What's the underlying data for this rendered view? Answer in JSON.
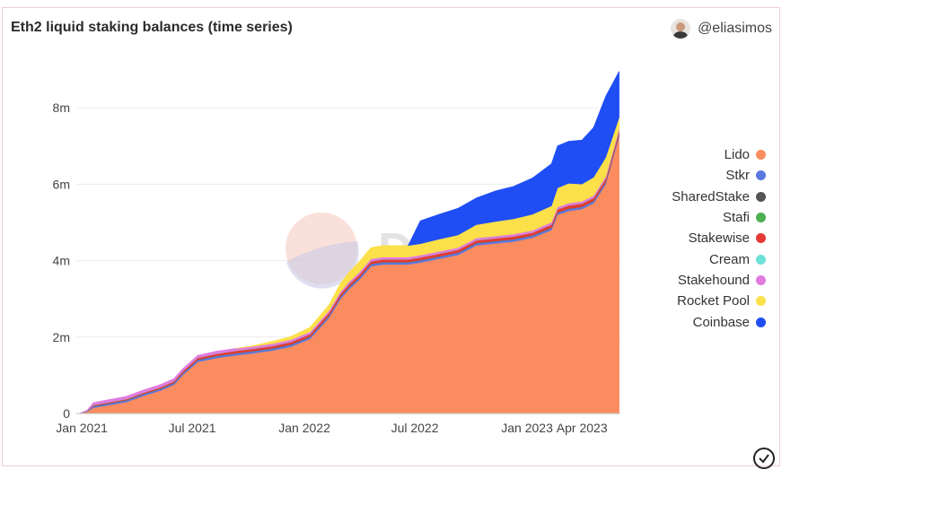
{
  "header": {
    "title": "Eth2 liquid staking balances (time series)",
    "author": "@eliasimos"
  },
  "watermark": "Dune",
  "chart_data": {
    "type": "area",
    "title": "Eth2 liquid staking balances (time series)",
    "stacked": true,
    "ylim": [
      0,
      9200000
    ],
    "yticks": [
      {
        "v": 0,
        "label": "0"
      },
      {
        "v": 2000000,
        "label": "2m"
      },
      {
        "v": 4000000,
        "label": "4m"
      },
      {
        "v": 6000000,
        "label": "6m"
      },
      {
        "v": 8000000,
        "label": "8m"
      }
    ],
    "xlim": [
      "2020-12-23",
      "2023-06-03"
    ],
    "xticks": [
      {
        "d": "2021-01-01",
        "label": "Jan 2021"
      },
      {
        "d": "2021-07-01",
        "label": "Jul 2021"
      },
      {
        "d": "2022-01-01",
        "label": "Jan 2022"
      },
      {
        "d": "2022-07-01",
        "label": "Jul 2022"
      },
      {
        "d": "2023-01-01",
        "label": "Jan 2023"
      },
      {
        "d": "2023-04-01",
        "label": "Apr 2023"
      }
    ],
    "x": [
      "2020-12-28",
      "2021-01-10",
      "2021-01-20",
      "2021-02-15",
      "2021-03-15",
      "2021-04-10",
      "2021-05-10",
      "2021-06-01",
      "2021-06-15",
      "2021-07-10",
      "2021-08-10",
      "2021-09-10",
      "2021-10-10",
      "2021-11-10",
      "2021-12-10",
      "2022-01-10",
      "2022-02-10",
      "2022-03-01",
      "2022-03-15",
      "2022-04-01",
      "2022-04-20",
      "2022-05-10",
      "2022-06-01",
      "2022-06-10",
      "2022-06-20",
      "2022-07-10",
      "2022-08-10",
      "2022-09-10",
      "2022-10-10",
      "2022-11-10",
      "2022-12-10",
      "2023-01-10",
      "2023-02-10",
      "2023-02-20",
      "2023-03-10",
      "2023-04-01",
      "2023-04-20",
      "2023-05-10",
      "2023-06-01"
    ],
    "series": [
      {
        "name": "Lido",
        "color": "#fb8c5f",
        "values": [
          0,
          50000,
          150000,
          220000,
          300000,
          450000,
          600000,
          750000,
          1000000,
          1350000,
          1450000,
          1520000,
          1580000,
          1650000,
          1750000,
          1950000,
          2500000,
          3000000,
          3250000,
          3500000,
          3850000,
          3900000,
          3900000,
          3900000,
          3900000,
          3950000,
          4050000,
          4150000,
          4400000,
          4450000,
          4500000,
          4600000,
          4800000,
          5200000,
          5300000,
          5350000,
          5500000,
          6000000,
          7250000
        ]
      },
      {
        "name": "Stkr",
        "color": "#5a78e0",
        "values": [
          0,
          10000,
          40000,
          45000,
          45000,
          45000,
          45000,
          45000,
          45000,
          50000,
          50000,
          50000,
          50000,
          50000,
          50000,
          50000,
          50000,
          50000,
          55000,
          55000,
          55000,
          55000,
          55000,
          55000,
          55000,
          55000,
          55000,
          55000,
          55000,
          55000,
          55000,
          55000,
          55000,
          55000,
          55000,
          55000,
          55000,
          55000,
          55000
        ]
      },
      {
        "name": "SharedStake",
        "color": "#555555",
        "values": [
          0,
          3000,
          5000,
          5000,
          5000,
          5000,
          5000,
          5000,
          5000,
          5000,
          5000,
          5000,
          5000,
          5000,
          5000,
          5000,
          5000,
          5000,
          5000,
          5000,
          5000,
          5000,
          5000,
          5000,
          5000,
          5000,
          5000,
          5000,
          5000,
          5000,
          5000,
          5000,
          5000,
          5000,
          5000,
          5000,
          5000,
          5000,
          5000
        ]
      },
      {
        "name": "Stafi",
        "color": "#4caf50",
        "values": [
          0,
          2000,
          3000,
          3000,
          3000,
          3000,
          3000,
          3000,
          3000,
          3000,
          3000,
          3000,
          3000,
          3000,
          3000,
          3000,
          3000,
          3000,
          3000,
          3000,
          3000,
          3000,
          3000,
          3000,
          3000,
          3000,
          3000,
          3000,
          3000,
          3000,
          3000,
          3000,
          3000,
          3000,
          3000,
          3000,
          3000,
          3000,
          3000
        ]
      },
      {
        "name": "Stakewise",
        "color": "#e53935",
        "values": [
          0,
          5000,
          20000,
          22000,
          25000,
          30000,
          35000,
          40000,
          45000,
          50000,
          55000,
          60000,
          60000,
          60000,
          65000,
          65000,
          70000,
          70000,
          70000,
          70000,
          70000,
          70000,
          70000,
          70000,
          70000,
          70000,
          70000,
          70000,
          70000,
          70000,
          70000,
          70000,
          80000,
          80000,
          80000,
          80000,
          80000,
          80000,
          80000
        ]
      },
      {
        "name": "Cream",
        "color": "#6fe0d8",
        "values": [
          0,
          2000,
          5000,
          5000,
          5000,
          5000,
          5000,
          5000,
          5000,
          5000,
          5000,
          5000,
          5000,
          5000,
          5000,
          5000,
          5000,
          5000,
          5000,
          5000,
          5000,
          5000,
          5000,
          5000,
          5000,
          5000,
          5000,
          5000,
          5000,
          5000,
          5000,
          5000,
          5000,
          5000,
          5000,
          5000,
          5000,
          5000,
          5000
        ]
      },
      {
        "name": "Stakehound",
        "color": "#e07be0",
        "values": [
          0,
          20000,
          60000,
          65000,
          65000,
          65000,
          65000,
          65000,
          60000,
          60000,
          60000,
          60000,
          55000,
          55000,
          55000,
          55000,
          55000,
          55000,
          55000,
          55000,
          55000,
          55000,
          55000,
          55000,
          55000,
          55000,
          55000,
          55000,
          55000,
          55000,
          55000,
          55000,
          55000,
          55000,
          55000,
          55000,
          55000,
          55000,
          55000
        ]
      },
      {
        "name": "Rocket Pool",
        "color": "#fbe04a",
        "values": [
          0,
          0,
          0,
          0,
          0,
          0,
          0,
          0,
          0,
          0,
          0,
          0,
          20000,
          60000,
          80000,
          120000,
          150000,
          220000,
          250000,
          280000,
          300000,
          300000,
          300000,
          300000,
          300000,
          300000,
          320000,
          330000,
          350000,
          380000,
          400000,
          420000,
          430000,
          500000,
          520000,
          450000,
          480000,
          500000,
          300000
        ]
      },
      {
        "name": "Coinbase",
        "color": "#1f4ef5",
        "values": [
          0,
          0,
          0,
          0,
          0,
          0,
          0,
          0,
          0,
          0,
          0,
          0,
          0,
          0,
          0,
          0,
          0,
          0,
          0,
          0,
          0,
          0,
          0,
          0,
          0,
          600000,
          650000,
          700000,
          700000,
          800000,
          850000,
          950000,
          1100000,
          1100000,
          1100000,
          1150000,
          1300000,
          1600000,
          1200000
        ]
      }
    ],
    "legend_position": "right",
    "grid": true
  }
}
